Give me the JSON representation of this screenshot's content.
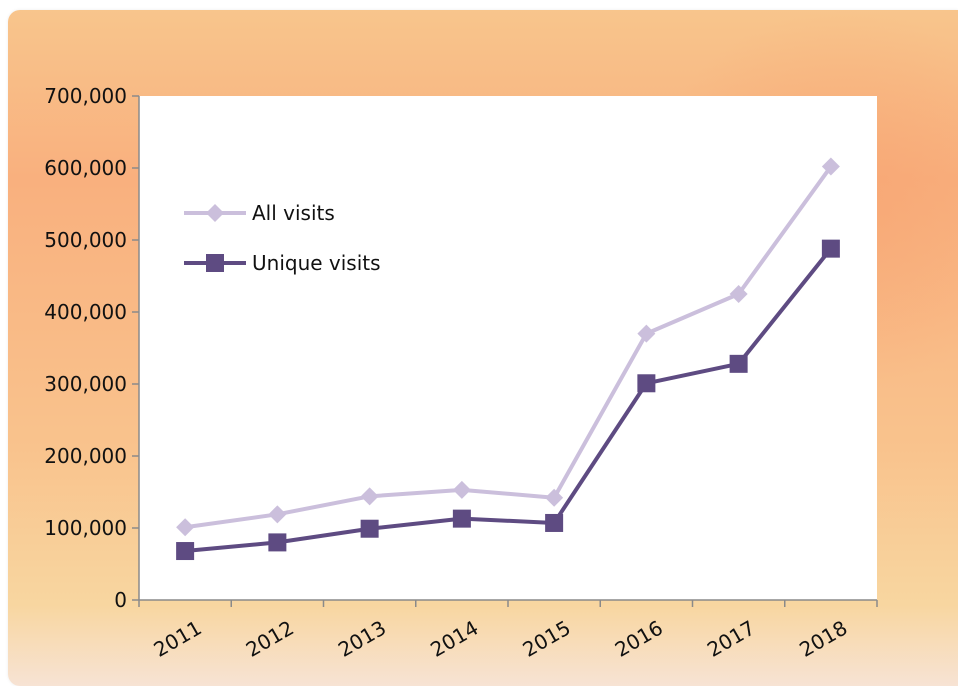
{
  "chart_data": {
    "type": "line",
    "title": "",
    "xlabel": "",
    "ylabel": "",
    "categories": [
      "2011",
      "2012",
      "2013",
      "2014",
      "2015",
      "2016",
      "2017",
      "2018"
    ],
    "ylim": [
      0,
      700000
    ],
    "yticks": [
      "0",
      "100,000",
      "200,000",
      "300,000",
      "400,000",
      "500,000",
      "600,000",
      "700,000"
    ],
    "grid": false,
    "legend_position": "top-left inside",
    "series": [
      {
        "name": "All visits",
        "color": "#cbbfdc",
        "marker": "diamond",
        "values": [
          101000,
          119000,
          144000,
          153000,
          142000,
          370000,
          425000,
          602000
        ]
      },
      {
        "name": "Unique visits",
        "color": "#5e4b82",
        "marker": "square",
        "values": [
          68000,
          80000,
          99000,
          113000,
          107000,
          301000,
          328000,
          488000
        ]
      }
    ]
  }
}
